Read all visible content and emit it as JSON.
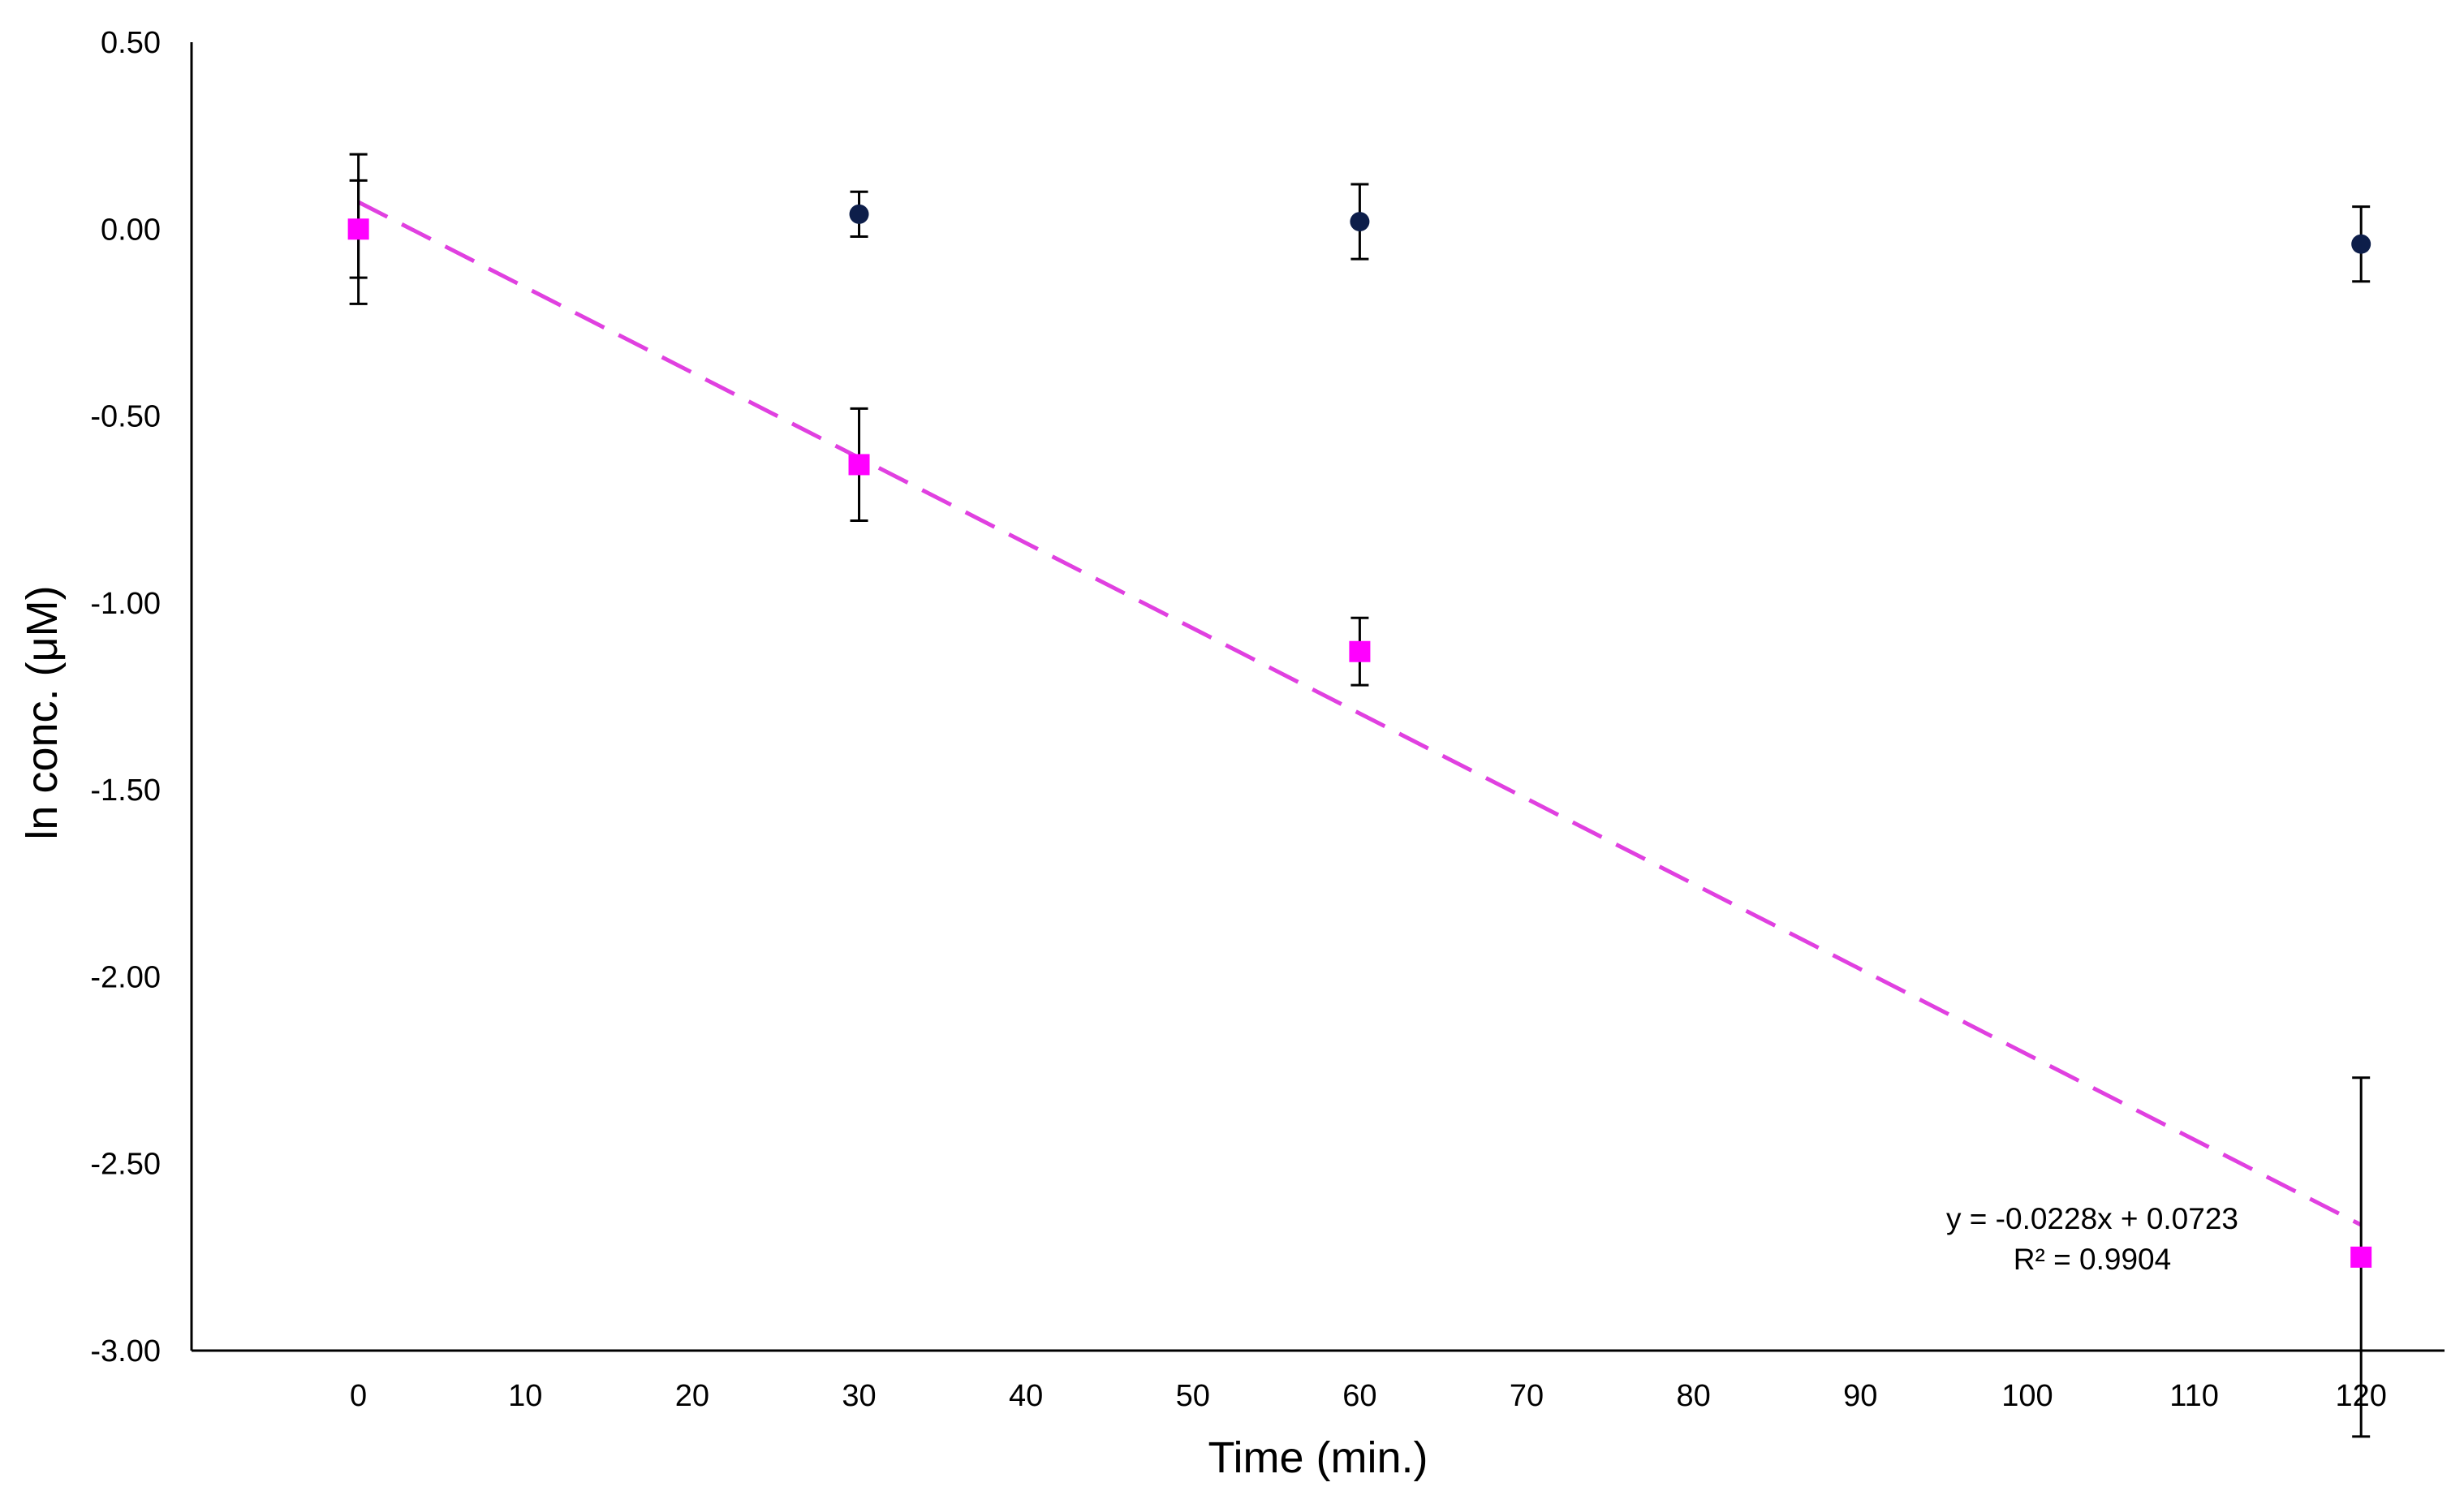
{
  "chart_data": {
    "type": "scatter",
    "title": "",
    "xlabel": "Time (min.)",
    "ylabel": "ln conc. (μM)",
    "xlim": [
      -10,
      125
    ],
    "ylim": [
      -3.0,
      0.5
    ],
    "x_ticks": [
      0,
      10,
      20,
      30,
      40,
      50,
      60,
      70,
      80,
      90,
      100,
      110,
      120
    ],
    "x_tick_labels": [
      "0",
      "10",
      "20",
      "30",
      "40",
      "50",
      "60",
      "70",
      "80",
      "90",
      "100",
      "110",
      "120"
    ],
    "y_ticks": [
      0.5,
      0.0,
      -0.5,
      -1.0,
      -1.5,
      -2.0,
      -2.5,
      -3.0
    ],
    "y_tick_labels": [
      "0.50",
      "0.00",
      "-0.50",
      "-1.00",
      "-1.50",
      "-2.00",
      "-2.50",
      "-3.00"
    ],
    "grid": false,
    "legend": "none",
    "series": [
      {
        "marker": "circle",
        "color": "#0d1e4a",
        "x": [
          0,
          30,
          60,
          120
        ],
        "y": [
          0.0,
          0.04,
          0.02,
          -0.04
        ],
        "error": [
          0.13,
          0.06,
          0.1,
          0.1
        ]
      },
      {
        "marker": "square",
        "color": "#ff00ff",
        "x": [
          0,
          30,
          60,
          120
        ],
        "y": [
          0.0,
          -0.63,
          -1.13,
          -2.75
        ],
        "error": [
          0.2,
          0.15,
          0.09,
          0.48
        ]
      }
    ],
    "trendline": {
      "color": "#e040e0",
      "style": "dashed",
      "slope": -0.0228,
      "intercept": 0.0723,
      "x_range": [
        0,
        120
      ]
    },
    "annotations": {
      "equation": "y = -0.0228x + 0.0723",
      "r_squared": "R² = 0.9904"
    }
  }
}
